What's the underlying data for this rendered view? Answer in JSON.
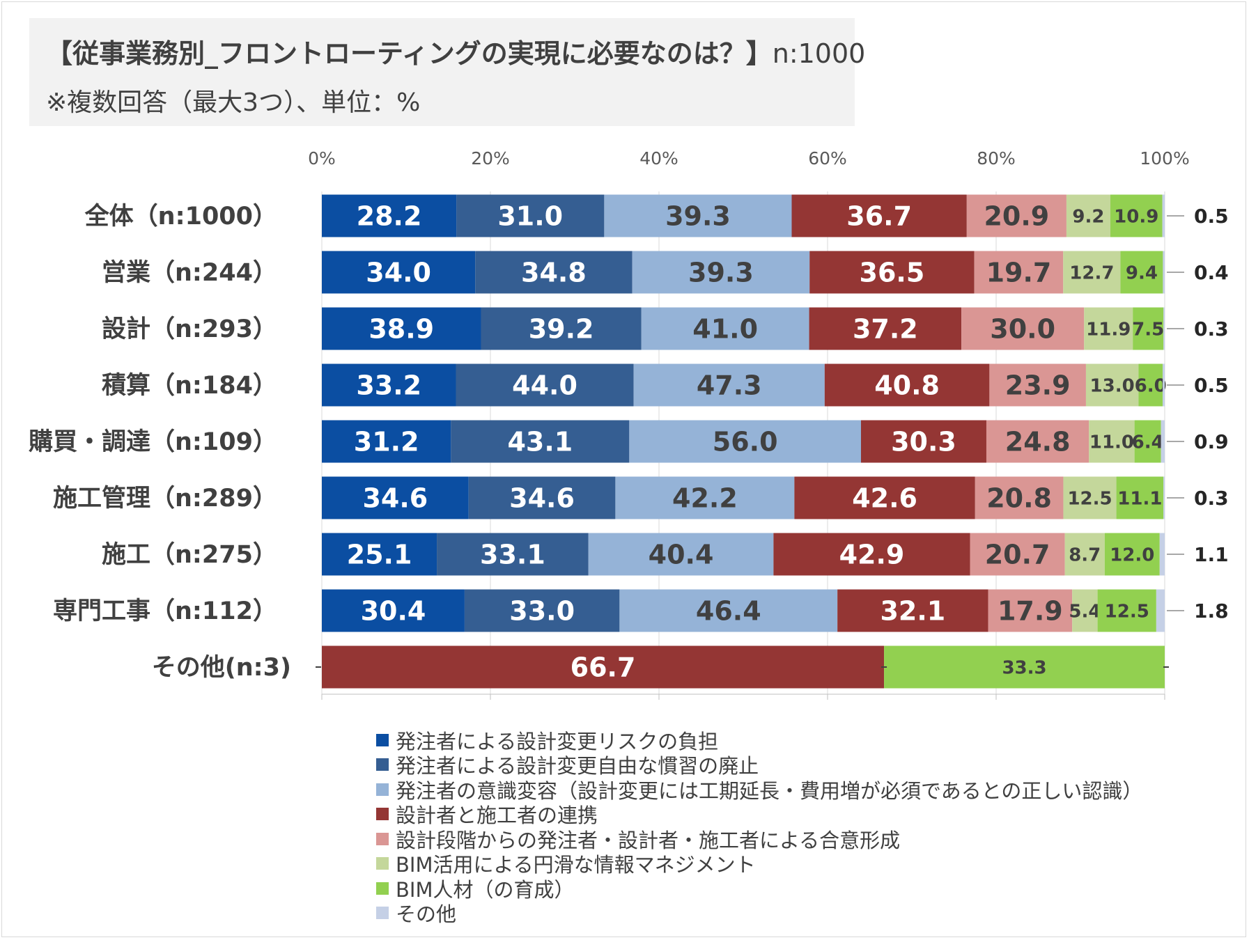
{
  "title": {
    "main": "【従事業務別_フロントローティングの実現に必要なのは？】",
    "n": "n:1000",
    "subtitle": "※複数回答（最大3つ）、単位：%"
  },
  "chart_data": {
    "type": "stacked-bar-horizontal-100pct",
    "x_ticks": [
      "0%",
      "20%",
      "40%",
      "60%",
      "80%",
      "100%"
    ],
    "xlim": [
      0,
      100
    ],
    "series": [
      {
        "name": "発注者による設計変更リスクの負担",
        "color": "#0b4ea2"
      },
      {
        "name": "発注者による設計変更自由な慣習の廃止",
        "color": "#355e92"
      },
      {
        "name": "発注者の意識変容（設計変更には工期延長・費用増が必須であるとの正しい認識）",
        "color": "#95b3d7"
      },
      {
        "name": "設計者と施工者の連携",
        "color": "#943634"
      },
      {
        "name": "設計段階からの発注者・設計者・施工者による合意形成",
        "color": "#da9694"
      },
      {
        "name": "BIM活用による円滑な情報マネジメント",
        "color": "#c4d79b"
      },
      {
        "name": "BIM人材（の育成）",
        "color": "#92d050"
      },
      {
        "name": "その他",
        "color": "#c5d0e6"
      }
    ],
    "categories": [
      {
        "label": "全体（n:1000）",
        "values": [
          28.2,
          31.0,
          39.3,
          36.7,
          20.9,
          9.2,
          10.9,
          0.5
        ]
      },
      {
        "label": "営業（n:244）",
        "values": [
          34.0,
          34.8,
          39.3,
          36.5,
          19.7,
          12.7,
          9.4,
          0.4
        ]
      },
      {
        "label": "設計（n:293）",
        "values": [
          38.9,
          39.2,
          41.0,
          37.2,
          30.0,
          11.9,
          7.5,
          0.3
        ]
      },
      {
        "label": "積算（n:184）",
        "values": [
          33.2,
          44.0,
          47.3,
          40.8,
          23.9,
          13.0,
          6.0,
          0.5
        ]
      },
      {
        "label": "購買・調達（n:109）",
        "values": [
          31.2,
          43.1,
          56.0,
          30.3,
          24.8,
          11.0,
          6.4,
          0.9
        ]
      },
      {
        "label": "施工管理（n:289）",
        "values": [
          34.6,
          34.6,
          42.2,
          42.6,
          20.8,
          12.5,
          11.1,
          0.3
        ]
      },
      {
        "label": "施工（n:275）",
        "values": [
          25.1,
          33.1,
          40.4,
          42.9,
          20.7,
          8.7,
          12.0,
          1.1
        ]
      },
      {
        "label": "専門工事（n:112）",
        "values": [
          30.4,
          33.0,
          46.4,
          32.1,
          17.9,
          5.4,
          12.5,
          1.8
        ]
      },
      {
        "label": "その他(n:3)",
        "values": [
          0,
          0,
          0,
          66.7,
          0,
          0,
          33.3,
          0
        ]
      }
    ]
  }
}
